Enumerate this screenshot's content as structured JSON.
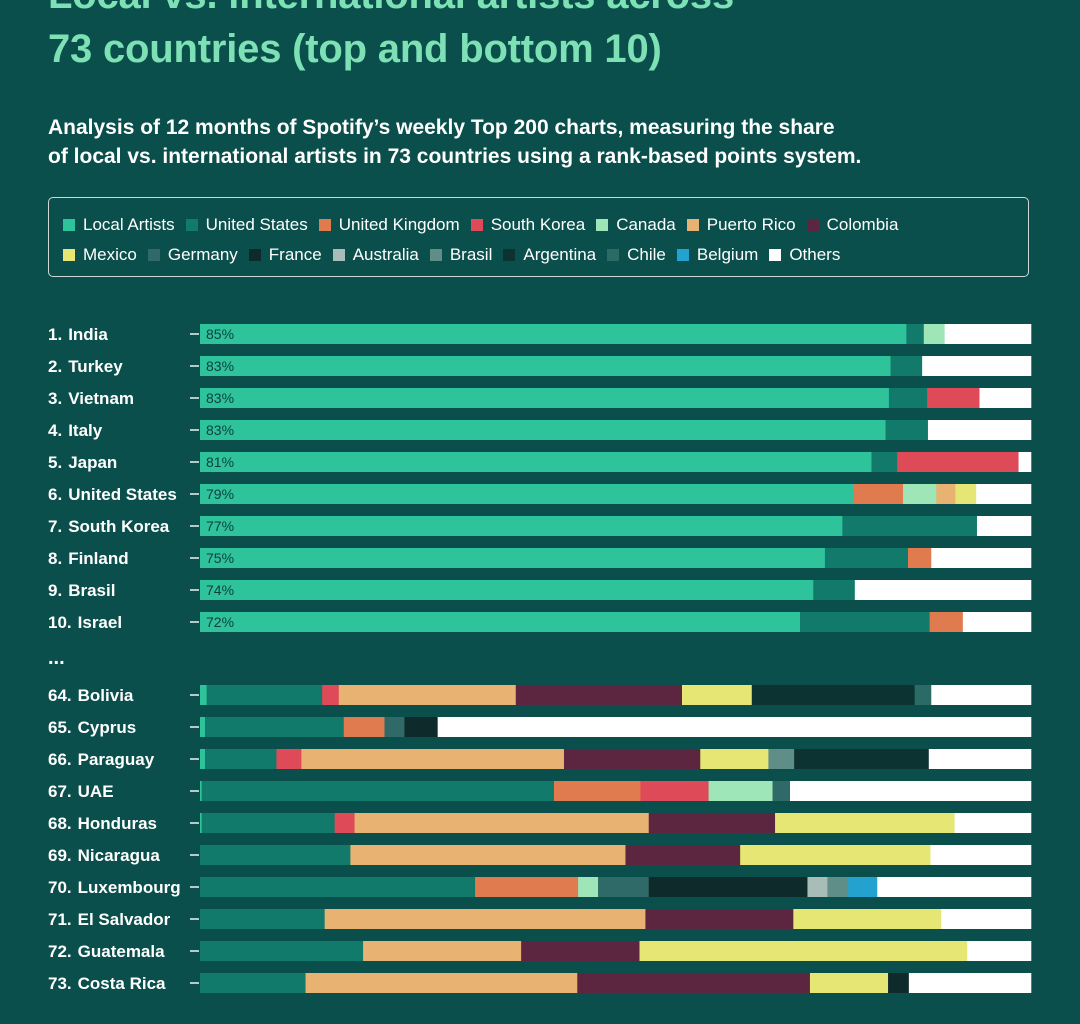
{
  "header": {
    "title_line1": "Local vs. international artists across",
    "title_line2": "73 countries (top and bottom 10)",
    "subtitle_line1": "Analysis of 12 months of Spotify’s weekly Top 200 charts, measuring the share",
    "subtitle_line2": "of local vs. international artists in 73 countries using a rank-based points system."
  },
  "legend": {
    "rows": [
      [
        {
          "label": "Local Artists",
          "color": "#2fc39c"
        },
        {
          "label": "United States",
          "color": "#127a6a"
        },
        {
          "label": "United Kingdom",
          "color": "#e07b4f"
        },
        {
          "label": "South Korea",
          "color": "#df4a58"
        },
        {
          "label": "Canada",
          "color": "#9ee6b8"
        },
        {
          "label": "Puerto Rico",
          "color": "#e8b272"
        },
        {
          "label": "Colombia",
          "color": "#5c2540"
        }
      ],
      [
        {
          "label": "Mexico",
          "color": "#e5e673"
        },
        {
          "label": "Germany",
          "color": "#2f6a68"
        },
        {
          "label": "France",
          "color": "#0f2a2b"
        },
        {
          "label": "Australia",
          "color": "#a8bdb8"
        },
        {
          "label": "Brasil",
          "color": "#5f8d88"
        },
        {
          "label": "Argentina",
          "color": "#0c3232"
        },
        {
          "label": "Chile",
          "color": "#2a6b66"
        },
        {
          "label": "Belgium",
          "color": "#24a2cf"
        },
        {
          "label": "Others",
          "color": "#ffffff"
        }
      ]
    ]
  },
  "chart_data": {
    "type": "bar",
    "orientation": "horizontal",
    "stacked": true,
    "unit": "percent",
    "xlim": [
      0,
      100
    ],
    "ellipsis": "...",
    "series_colors": {
      "Local Artists": "#2fc39c",
      "United States": "#127a6a",
      "United Kingdom": "#e07b4f",
      "South Korea": "#df4a58",
      "Canada": "#9ee6b8",
      "Puerto Rico": "#e8b272",
      "Colombia": "#5c2540",
      "Mexico": "#e5e673",
      "Germany": "#2f6a68",
      "France": "#0f2a2b",
      "Australia": "#a8bdb8",
      "Brasil": "#5f8d88",
      "Argentina": "#0c3232",
      "Chile": "#2a6b66",
      "Belgium": "#24a2cf",
      "Others": "#ffffff"
    },
    "top10": [
      {
        "rank": "1.",
        "country": "India",
        "pct_label": "85%",
        "segments": [
          {
            "s": "Local Artists",
            "v": 85.0
          },
          {
            "s": "United States",
            "v": 2.1
          },
          {
            "s": "Canada",
            "v": 2.5
          },
          {
            "s": "Others",
            "v": 10.4
          }
        ]
      },
      {
        "rank": "2.",
        "country": "Turkey",
        "pct_label": "83%",
        "segments": [
          {
            "s": "Local Artists",
            "v": 83.1
          },
          {
            "s": "United States",
            "v": 3.8
          },
          {
            "s": "Others",
            "v": 13.1
          }
        ]
      },
      {
        "rank": "3.",
        "country": "Vietnam",
        "pct_label": "83%",
        "segments": [
          {
            "s": "Local Artists",
            "v": 82.9
          },
          {
            "s": "United States",
            "v": 4.6
          },
          {
            "s": "South Korea",
            "v": 6.3
          },
          {
            "s": "Others",
            "v": 6.2
          }
        ]
      },
      {
        "rank": "4.",
        "country": "Italy",
        "pct_label": "83%",
        "segments": [
          {
            "s": "Local Artists",
            "v": 82.5
          },
          {
            "s": "United States",
            "v": 5.1
          },
          {
            "s": "Others",
            "v": 12.4
          }
        ]
      },
      {
        "rank": "5.",
        "country": "Japan",
        "pct_label": "81%",
        "segments": [
          {
            "s": "Local Artists",
            "v": 80.8
          },
          {
            "s": "United States",
            "v": 3.1
          },
          {
            "s": "South Korea",
            "v": 14.6
          },
          {
            "s": "Others",
            "v": 1.5
          }
        ]
      },
      {
        "rank": "6.",
        "country": "United States",
        "pct_label": "79%",
        "segments": [
          {
            "s": "Local Artists",
            "v": 78.6
          },
          {
            "s": "United Kingdom",
            "v": 6.0
          },
          {
            "s": "Canada",
            "v": 4.0
          },
          {
            "s": "Puerto Rico",
            "v": 2.3
          },
          {
            "s": "Mexico",
            "v": 2.5
          },
          {
            "s": "Others",
            "v": 6.6
          }
        ]
      },
      {
        "rank": "7.",
        "country": "South Korea",
        "pct_label": "77%",
        "segments": [
          {
            "s": "Local Artists",
            "v": 77.3
          },
          {
            "s": "United States",
            "v": 16.2
          },
          {
            "s": "Others",
            "v": 6.5
          }
        ]
      },
      {
        "rank": "8.",
        "country": "Finland",
        "pct_label": "75%",
        "segments": [
          {
            "s": "Local Artists",
            "v": 75.2
          },
          {
            "s": "United States",
            "v": 10.0
          },
          {
            "s": "United Kingdom",
            "v": 2.8
          },
          {
            "s": "Others",
            "v": 12.0
          }
        ]
      },
      {
        "rank": "9.",
        "country": "Brasil",
        "pct_label": "74%",
        "segments": [
          {
            "s": "Local Artists",
            "v": 73.8
          },
          {
            "s": "United States",
            "v": 5.0
          },
          {
            "s": "Others",
            "v": 21.2
          }
        ]
      },
      {
        "rank": "10.",
        "country": "Israel",
        "pct_label": "72%",
        "segments": [
          {
            "s": "Local Artists",
            "v": 72.2
          },
          {
            "s": "United States",
            "v": 15.6
          },
          {
            "s": "United Kingdom",
            "v": 4.0
          },
          {
            "s": "Others",
            "v": 8.2
          }
        ]
      }
    ],
    "bottom10": [
      {
        "rank": "64.",
        "country": "Bolivia",
        "segments": [
          {
            "s": "Local Artists",
            "v": 0.8
          },
          {
            "s": "United States",
            "v": 13.9
          },
          {
            "s": "South Korea",
            "v": 2.0
          },
          {
            "s": "Puerto Rico",
            "v": 21.3
          },
          {
            "s": "Colombia",
            "v": 20.0
          },
          {
            "s": "Mexico",
            "v": 8.4
          },
          {
            "s": "Argentina",
            "v": 19.6
          },
          {
            "s": "Chile",
            "v": 2.0
          },
          {
            "s": "Others",
            "v": 12.0
          }
        ]
      },
      {
        "rank": "65.",
        "country": "Cyprus",
        "segments": [
          {
            "s": "Local Artists",
            "v": 0.6
          },
          {
            "s": "United States",
            "v": 16.7
          },
          {
            "s": "United Kingdom",
            "v": 4.9
          },
          {
            "s": "Germany",
            "v": 2.4
          },
          {
            "s": "France",
            "v": 4.0
          },
          {
            "s": "Others",
            "v": 71.4
          }
        ]
      },
      {
        "rank": "66.",
        "country": "Paraguay",
        "segments": [
          {
            "s": "Local Artists",
            "v": 0.6
          },
          {
            "s": "United States",
            "v": 8.6
          },
          {
            "s": "South Korea",
            "v": 3.0
          },
          {
            "s": "Puerto Rico",
            "v": 31.6
          },
          {
            "s": "Colombia",
            "v": 16.4
          },
          {
            "s": "Mexico",
            "v": 8.2
          },
          {
            "s": "Brasil",
            "v": 3.1
          },
          {
            "s": "Argentina",
            "v": 16.2
          },
          {
            "s": "Others",
            "v": 12.3
          }
        ]
      },
      {
        "rank": "67.",
        "country": "UAE",
        "segments": [
          {
            "s": "Local Artists",
            "v": 0.2
          },
          {
            "s": "United States",
            "v": 42.4
          },
          {
            "s": "United Kingdom",
            "v": 10.4
          },
          {
            "s": "South Korea",
            "v": 8.2
          },
          {
            "s": "Canada",
            "v": 7.7
          },
          {
            "s": "Germany",
            "v": 2.1
          },
          {
            "s": "Others",
            "v": 29.0
          }
        ]
      },
      {
        "rank": "68.",
        "country": "Honduras",
        "segments": [
          {
            "s": "Local Artists",
            "v": 0.2
          },
          {
            "s": "United States",
            "v": 16.0
          },
          {
            "s": "South Korea",
            "v": 2.4
          },
          {
            "s": "Puerto Rico",
            "v": 35.4
          },
          {
            "s": "Colombia",
            "v": 15.2
          },
          {
            "s": "Mexico",
            "v": 21.6
          },
          {
            "s": "Others",
            "v": 9.2
          }
        ]
      },
      {
        "rank": "69.",
        "country": "Nicaragua",
        "segments": [
          {
            "s": "United States",
            "v": 18.1
          },
          {
            "s": "Puerto Rico",
            "v": 33.1
          },
          {
            "s": "Colombia",
            "v": 13.8
          },
          {
            "s": "Mexico",
            "v": 22.9
          },
          {
            "s": "Others",
            "v": 12.1
          }
        ]
      },
      {
        "rank": "70.",
        "country": "Luxembourg",
        "segments": [
          {
            "s": "United States",
            "v": 33.1
          },
          {
            "s": "United Kingdom",
            "v": 12.4
          },
          {
            "s": "Canada",
            "v": 2.4
          },
          {
            "s": "Germany",
            "v": 6.1
          },
          {
            "s": "France",
            "v": 19.1
          },
          {
            "s": "Australia",
            "v": 2.4
          },
          {
            "s": "Brasil",
            "v": 2.5
          },
          {
            "s": "Belgium",
            "v": 3.5
          },
          {
            "s": "Others",
            "v": 18.5
          }
        ]
      },
      {
        "rank": "71.",
        "country": "El Salvador",
        "segments": [
          {
            "s": "United States",
            "v": 15.0
          },
          {
            "s": "Puerto Rico",
            "v": 38.6
          },
          {
            "s": "Colombia",
            "v": 17.8
          },
          {
            "s": "Mexico",
            "v": 17.8
          },
          {
            "s": "Others",
            "v": 10.8
          }
        ]
      },
      {
        "rank": "72.",
        "country": "Guatemala",
        "segments": [
          {
            "s": "United States",
            "v": 19.7
          },
          {
            "s": "Puerto Rico",
            "v": 19.1
          },
          {
            "s": "Colombia",
            "v": 14.3
          },
          {
            "s": "Mexico",
            "v": 39.6
          },
          {
            "s": "Others",
            "v": 7.7
          }
        ]
      },
      {
        "rank": "73.",
        "country": "Costa Rica",
        "segments": [
          {
            "s": "United States",
            "v": 12.7
          },
          {
            "s": "Puerto Rico",
            "v": 32.7
          },
          {
            "s": "Colombia",
            "v": 28.0
          },
          {
            "s": "Mexico",
            "v": 9.4
          },
          {
            "s": "France",
            "v": 2.5
          },
          {
            "s": "Others",
            "v": 14.7
          }
        ]
      }
    ]
  }
}
